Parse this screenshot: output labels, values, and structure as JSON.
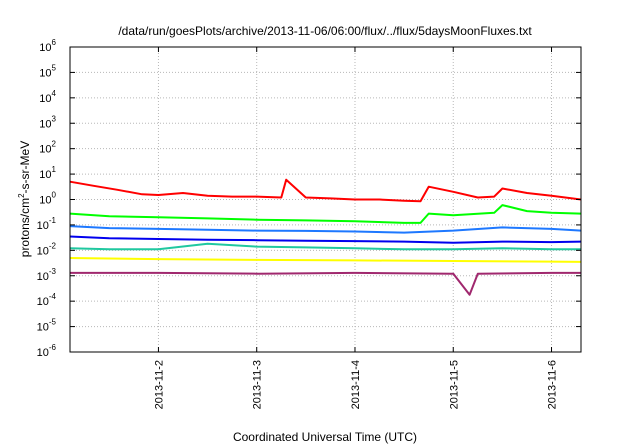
{
  "chart_data": {
    "type": "line",
    "title": "/data/run/goesPlots/archive/2013-11-06/06:00/flux/../flux/5daysMoonFluxes.txt",
    "xlabel": "Coordinated Universal Time (UTC)",
    "ylabel_parts": [
      "protons/cm",
      "2",
      "-s-sr-MeV"
    ],
    "y_scale": "log",
    "ylim": [
      1e-06,
      1000000.0
    ],
    "y_ticks": [
      {
        "base": "10",
        "exp": "-6",
        "value": 1e-06
      },
      {
        "base": "10",
        "exp": "-5",
        "value": 1e-05
      },
      {
        "base": "10",
        "exp": "-4",
        "value": 0.0001
      },
      {
        "base": "10",
        "exp": "-3",
        "value": 0.001
      },
      {
        "base": "10",
        "exp": "-2",
        "value": 0.01
      },
      {
        "base": "10",
        "exp": "-1",
        "value": 0.1
      },
      {
        "base": "10",
        "exp": "0",
        "value": 1
      },
      {
        "base": "10",
        "exp": "1",
        "value": 10
      },
      {
        "base": "10",
        "exp": "2",
        "value": 100
      },
      {
        "base": "10",
        "exp": "3",
        "value": 1000
      },
      {
        "base": "10",
        "exp": "4",
        "value": 10000
      },
      {
        "base": "10",
        "exp": "5",
        "value": 100000
      },
      {
        "base": "10",
        "exp": "6",
        "value": 1000000
      }
    ],
    "xlim": [
      "2013-11-01T02:24",
      "2013-11-06T07:12"
    ],
    "x_ticks": [
      "2013-11-2",
      "2013-11-3",
      "2013-11-4",
      "2013-11-5",
      "2013-11-6"
    ],
    "x_tick_dates": [
      "2013-11-02T00:00",
      "2013-11-03T00:00",
      "2013-11-04T00:00",
      "2013-11-05T00:00",
      "2013-11-06T00:00"
    ],
    "grid": true,
    "legend": "none",
    "series": [
      {
        "color": "#ff0000",
        "x": [
          "2013-11-01T02:24",
          "2013-11-01T08:00",
          "2013-11-01T14:00",
          "2013-11-01T20:00",
          "2013-11-02T00:00",
          "2013-11-02T06:00",
          "2013-11-02T12:00",
          "2013-11-02T18:00",
          "2013-11-03T00:00",
          "2013-11-03T06:00",
          "2013-11-03T07:12",
          "2013-11-03T12:00",
          "2013-11-03T18:00",
          "2013-11-04T00:00",
          "2013-11-04T06:00",
          "2013-11-04T12:00",
          "2013-11-04T16:00",
          "2013-11-04T18:00",
          "2013-11-05T00:00",
          "2013-11-05T06:00",
          "2013-11-05T10:00",
          "2013-11-05T12:00",
          "2013-11-05T18:00",
          "2013-11-06T00:00",
          "2013-11-06T07:12"
        ],
        "y": [
          5,
          3.5,
          2.4,
          1.6,
          1.5,
          1.8,
          1.4,
          1.3,
          1.3,
          1.2,
          6,
          1.2,
          1.1,
          1.0,
          1.0,
          0.9,
          0.85,
          3.2,
          2.0,
          1.2,
          1.3,
          2.7,
          1.8,
          1.4,
          1.0
        ]
      },
      {
        "color": "#00ff00",
        "x": [
          "2013-11-01T02:24",
          "2013-11-01T12:00",
          "2013-11-02T00:00",
          "2013-11-02T12:00",
          "2013-11-03T00:00",
          "2013-11-03T12:00",
          "2013-11-04T00:00",
          "2013-11-04T12:00",
          "2013-11-04T16:00",
          "2013-11-04T18:00",
          "2013-11-05T00:00",
          "2013-11-05T10:00",
          "2013-11-05T12:00",
          "2013-11-05T18:00",
          "2013-11-06T00:00",
          "2013-11-06T07:12"
        ],
        "y": [
          0.28,
          0.22,
          0.2,
          0.18,
          0.16,
          0.15,
          0.14,
          0.12,
          0.12,
          0.28,
          0.24,
          0.3,
          0.6,
          0.35,
          0.3,
          0.28
        ]
      },
      {
        "color": "#1e78ff",
        "x": [
          "2013-11-01T02:24",
          "2013-11-01T12:00",
          "2013-11-02T00:00",
          "2013-11-02T12:00",
          "2013-11-03T00:00",
          "2013-11-03T12:00",
          "2013-11-04T00:00",
          "2013-11-04T12:00",
          "2013-11-05T00:00",
          "2013-11-05T12:00",
          "2013-11-06T00:00",
          "2013-11-06T07:12"
        ],
        "y": [
          0.09,
          0.075,
          0.07,
          0.065,
          0.06,
          0.058,
          0.055,
          0.05,
          0.06,
          0.08,
          0.07,
          0.06
        ]
      },
      {
        "color": "#0000ee",
        "x": [
          "2013-11-01T02:24",
          "2013-11-01T12:00",
          "2013-11-02T00:00",
          "2013-11-02T12:00",
          "2013-11-03T00:00",
          "2013-11-03T12:00",
          "2013-11-04T00:00",
          "2013-11-04T12:00",
          "2013-11-05T00:00",
          "2013-11-05T12:00",
          "2013-11-06T00:00",
          "2013-11-06T07:12"
        ],
        "y": [
          0.035,
          0.03,
          0.028,
          0.026,
          0.025,
          0.024,
          0.023,
          0.022,
          0.02,
          0.022,
          0.021,
          0.022
        ]
      },
      {
        "color": "#20c8a0",
        "x": [
          "2013-11-01T02:24",
          "2013-11-01T12:00",
          "2013-11-02T00:00",
          "2013-11-02T12:00",
          "2013-11-03T00:00",
          "2013-11-03T12:00",
          "2013-11-04T00:00",
          "2013-11-04T12:00",
          "2013-11-05T00:00",
          "2013-11-05T12:00",
          "2013-11-06T00:00",
          "2013-11-06T07:12"
        ],
        "y": [
          0.012,
          0.011,
          0.011,
          0.018,
          0.014,
          0.013,
          0.012,
          0.011,
          0.011,
          0.012,
          0.011,
          0.011
        ]
      },
      {
        "color": "#ffff00",
        "x": [
          "2013-11-01T02:24",
          "2013-11-02T00:00",
          "2013-11-03T00:00",
          "2013-11-04T00:00",
          "2013-11-05T00:00",
          "2013-11-06T00:00",
          "2013-11-06T07:12"
        ],
        "y": [
          0.005,
          0.0045,
          0.0042,
          0.004,
          0.0038,
          0.0036,
          0.0035
        ]
      },
      {
        "color": "#a0286e",
        "x": [
          "2013-11-01T02:24",
          "2013-11-02T00:00",
          "2013-11-03T00:00",
          "2013-11-04T00:00",
          "2013-11-05T00:00",
          "2013-11-05T04:00",
          "2013-11-05T06:00",
          "2013-11-06T00:00",
          "2013-11-06T07:12"
        ],
        "y": [
          0.0013,
          0.0013,
          0.0012,
          0.0013,
          0.0012,
          0.00018,
          0.0012,
          0.0013,
          0.0013
        ]
      }
    ]
  }
}
